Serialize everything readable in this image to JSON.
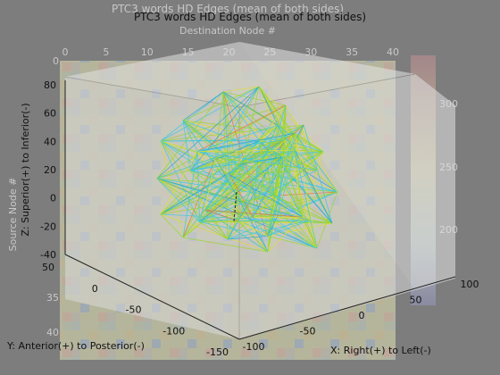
{
  "ghost": {
    "title": "PTC3 words HD Edges (mean of both sides)",
    "xlabel": "Destination Node #",
    "ylabel": "Source Node #",
    "x_ticks": [
      "0",
      "5",
      "10",
      "15",
      "20",
      "25",
      "30",
      "35",
      "40"
    ],
    "y_ticks": [
      "0",
      "35",
      "40"
    ],
    "colorbar_ticks": [
      "300",
      "250",
      "200"
    ]
  },
  "chart_data": {
    "type": "scatter",
    "title": "PTC3 words HD Edges (mean of both sides)",
    "xlabel": "X: Right(+) to Left(-)",
    "ylabel": "Y: Anterior(+) to Posterior(-)",
    "zlabel": "Z: Superior(+) to Inferior(-)",
    "x_ticks": [
      "-100",
      "-50",
      "0",
      "50",
      "100"
    ],
    "y_ticks": [
      "-150",
      "-100",
      "-50",
      "0",
      "50"
    ],
    "z_ticks": [
      "-40",
      "-20",
      "0",
      "20",
      "40",
      "60",
      "80"
    ],
    "xlim": [
      -100,
      100
    ],
    "ylim": [
      -150,
      50
    ],
    "zlim": [
      -40,
      80
    ],
    "edge_colors": [
      "#3cc8e0",
      "#9ad62c",
      "#dede30",
      "#e07a3a",
      "#2aa0d8",
      "#8ab030"
    ],
    "box_color": "#d8d8d8"
  }
}
